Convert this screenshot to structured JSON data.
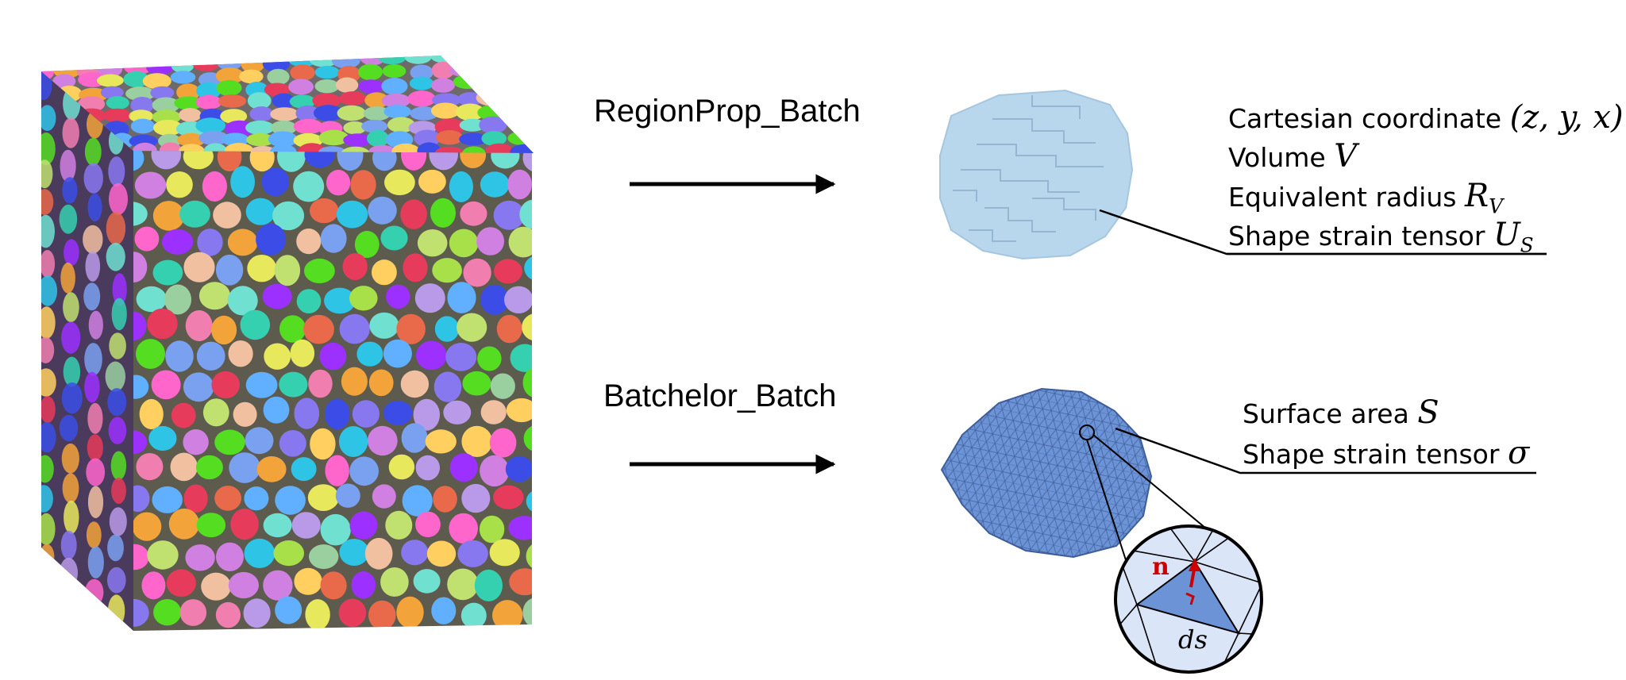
{
  "methods": {
    "regionprop": "RegionProp_Batch",
    "batchelor": "Batchelor_Batch"
  },
  "voxel_properties": {
    "cartesian": {
      "text": "Cartesian coordinate",
      "symbol": "(z, y, x)"
    },
    "volume": {
      "text": "Volume",
      "symbol": "V"
    },
    "radius": {
      "text": "Equivalent radius",
      "symbol": "R",
      "sub": "V"
    },
    "shape_strain": {
      "text": "Shape strain tensor",
      "symbol": "U",
      "sub": "S"
    }
  },
  "mesh_properties": {
    "surface_area": {
      "text": "Surface area",
      "symbol": "S"
    },
    "shape_strain": {
      "text": "Shape strain tensor",
      "symbol": "σ"
    }
  },
  "inset": {
    "normal": "n",
    "element": "ds"
  },
  "colors": {
    "voxel_grain": "#b8d6ec",
    "mesh_grain": "#6b93d6",
    "normal_vector": "#cc0000",
    "arrow": "#000000"
  }
}
